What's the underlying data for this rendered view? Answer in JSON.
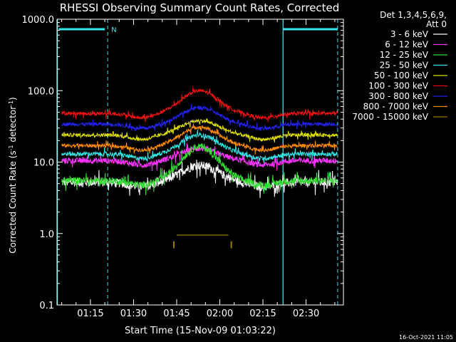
{
  "chart_data": {
    "type": "line",
    "title": "RHESSI Observing Summary Count Rates, Corrected",
    "xlabel": "Start Time (15-Nov-09 01:03:22)",
    "ylabel_main": "Corrected Count Rate (s",
    "ylabel_sup1": "-1",
    "ylabel_mid": " detector",
    "ylabel_sup2": "-1",
    "ylabel_end": ")",
    "ylabel": "Corrected Count Rate (s-1 detector-1)",
    "yscale": "log",
    "xlim": [
      "01:03:22",
      "02:43:00"
    ],
    "ylim": [
      0.1,
      1000
    ],
    "x_ticks": [
      "01:15",
      "01:30",
      "01:45",
      "02:00",
      "02:15",
      "02:30"
    ],
    "y_ticks": [
      "0.1",
      "1.0",
      "10.0",
      "100.0",
      "1000.0"
    ],
    "legend_title": [
      "Det 1,3,4,5,6,9,",
      "Att 0"
    ],
    "timestamp": "16-Oct-2021 11:05",
    "flag_label": "N",
    "grid": false,
    "legend_position": "top-right outside",
    "night_markers": {
      "solid_lines": [
        "01:03:30",
        "02:22:00"
      ],
      "dashed_lines": [
        "01:21:00",
        "02:41:00"
      ],
      "bars": [
        [
          "01:04:00",
          "01:20:00"
        ],
        [
          "02:22:00",
          "02:41:00"
        ]
      ]
    },
    "curve_shape": {
      "t_start": "01:05:00",
      "t_end": "02:41:00",
      "peak_time": "01:53:00",
      "dip_time_1": "01:33:00",
      "dip_time_2": "02:15:00"
    },
    "series": [
      {
        "name": "3 - 6 keV",
        "color": "#ffffff",
        "baseline": 5.2,
        "peak": 9.0,
        "noise": 0.06
      },
      {
        "name": "6 - 12 keV",
        "color": "#ff33ff",
        "baseline": 10.5,
        "peak": 15.5,
        "noise": 0.04
      },
      {
        "name": "12 - 25 keV",
        "color": "#33dd33",
        "baseline": 5.5,
        "peak": 16.5,
        "noise": 0.05
      },
      {
        "name": "25 - 50 keV",
        "color": "#33e8e8",
        "baseline": 13.0,
        "peak": 24.0,
        "noise": 0.03
      },
      {
        "name": "50 - 100 keV",
        "color": "#e0e000",
        "baseline": 24.0,
        "peak": 38.0,
        "noise": 0.025
      },
      {
        "name": "100 - 300 keV",
        "color": "#ee1111",
        "baseline": 48.0,
        "peak": 100.0,
        "noise": 0.025
      },
      {
        "name": "300 - 800 keV",
        "color": "#2222ee",
        "baseline": 34.0,
        "peak": 58.0,
        "noise": 0.025
      },
      {
        "name": "800 - 7000 keV",
        "color": "#ff8c00",
        "baseline": 17.0,
        "peak": 31.0,
        "noise": 0.025
      },
      {
        "name": "7000 - 15000 keV",
        "color": "#9a7a00",
        "baseline": 0.95,
        "peak": 0.95,
        "noise": 0.0,
        "visible_range": [
          "01:43:00",
          "02:07:00"
        ]
      }
    ]
  }
}
